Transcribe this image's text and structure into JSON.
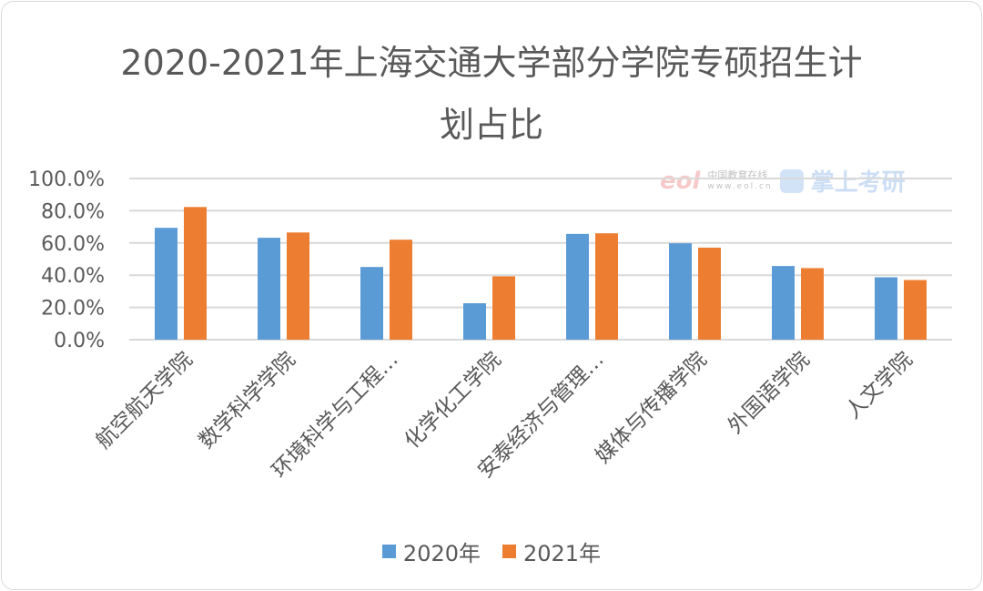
{
  "chart_data": {
    "type": "bar",
    "title_line1": "2020-2021年上海交通大学部分学院专硕招生计",
    "title_line2": "划占比",
    "categories": [
      "航空航天学院",
      "数学科学学院",
      "环境科学与工程…",
      "化学化工学院",
      "安泰经济与管理…",
      "媒体与传播学院",
      "外国语学院",
      "人文学院"
    ],
    "series": [
      {
        "name": "2020年",
        "color": "#5b9bd5",
        "values": [
          69.4,
          63.2,
          45.1,
          22.6,
          65.6,
          59.8,
          45.7,
          38.7
        ]
      },
      {
        "name": "2021年",
        "color": "#ed7d31",
        "values": [
          82.3,
          66.5,
          62.0,
          39.3,
          66.0,
          57.1,
          44.4,
          37.0
        ]
      }
    ],
    "yticks": [
      "0.0%",
      "20.0%",
      "40.0%",
      "60.0%",
      "80.0%",
      "100.0%"
    ],
    "ylim": [
      0,
      100
    ],
    "grid": true,
    "legend": "bottom"
  },
  "watermark": {
    "eol_logo": "eol",
    "eol_name": "中国教育在线",
    "eol_url": "www.eol.cn",
    "brand": "掌上考研"
  }
}
